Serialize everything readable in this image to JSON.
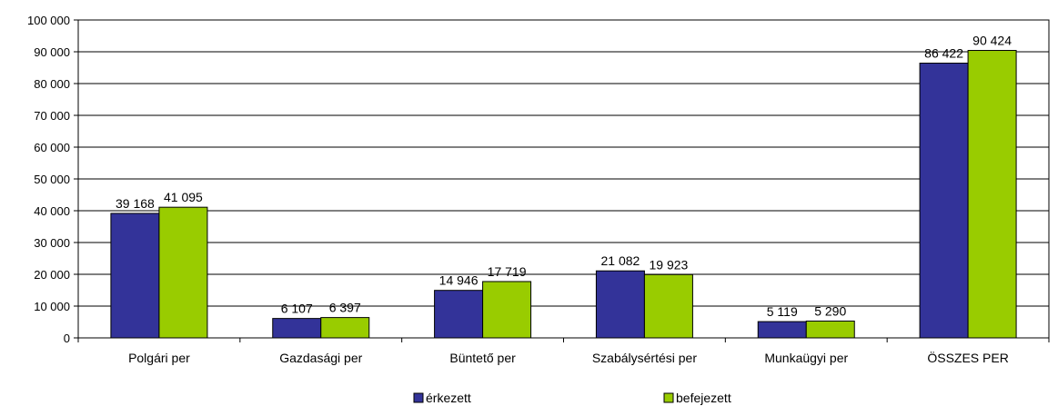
{
  "chart_data": {
    "type": "bar",
    "categories": [
      "Polgári per",
      "Gazdasági per",
      "Büntető per",
      "Szabálysértési per",
      "Munkaügyi per",
      "ÖSSZES PER"
    ],
    "series": [
      {
        "name": "érkezett",
        "values": [
          39168,
          6107,
          14946,
          21082,
          5119,
          86422
        ],
        "labels": [
          "39 168",
          "6 107",
          "14 946",
          "21 082",
          "5 119",
          "86 422"
        ],
        "color": "#333399"
      },
      {
        "name": "befejezett",
        "values": [
          41095,
          6397,
          17719,
          19923,
          5290,
          90424
        ],
        "labels": [
          "41 095",
          "6 397",
          "17 719",
          "19 923",
          "5 290",
          "90 424"
        ],
        "color": "#99cc00"
      }
    ],
    "yticks": [
      0,
      10000,
      20000,
      30000,
      40000,
      50000,
      60000,
      70000,
      80000,
      90000,
      100000
    ],
    "ytick_labels": [
      "0",
      "10 000",
      "20 000",
      "30 000",
      "40 000",
      "50 000",
      "60 000",
      "70 000",
      "80 000",
      "90 000",
      "100 000"
    ],
    "ylim": [
      0,
      100000
    ],
    "grid": true,
    "legend_position": "bottom"
  }
}
